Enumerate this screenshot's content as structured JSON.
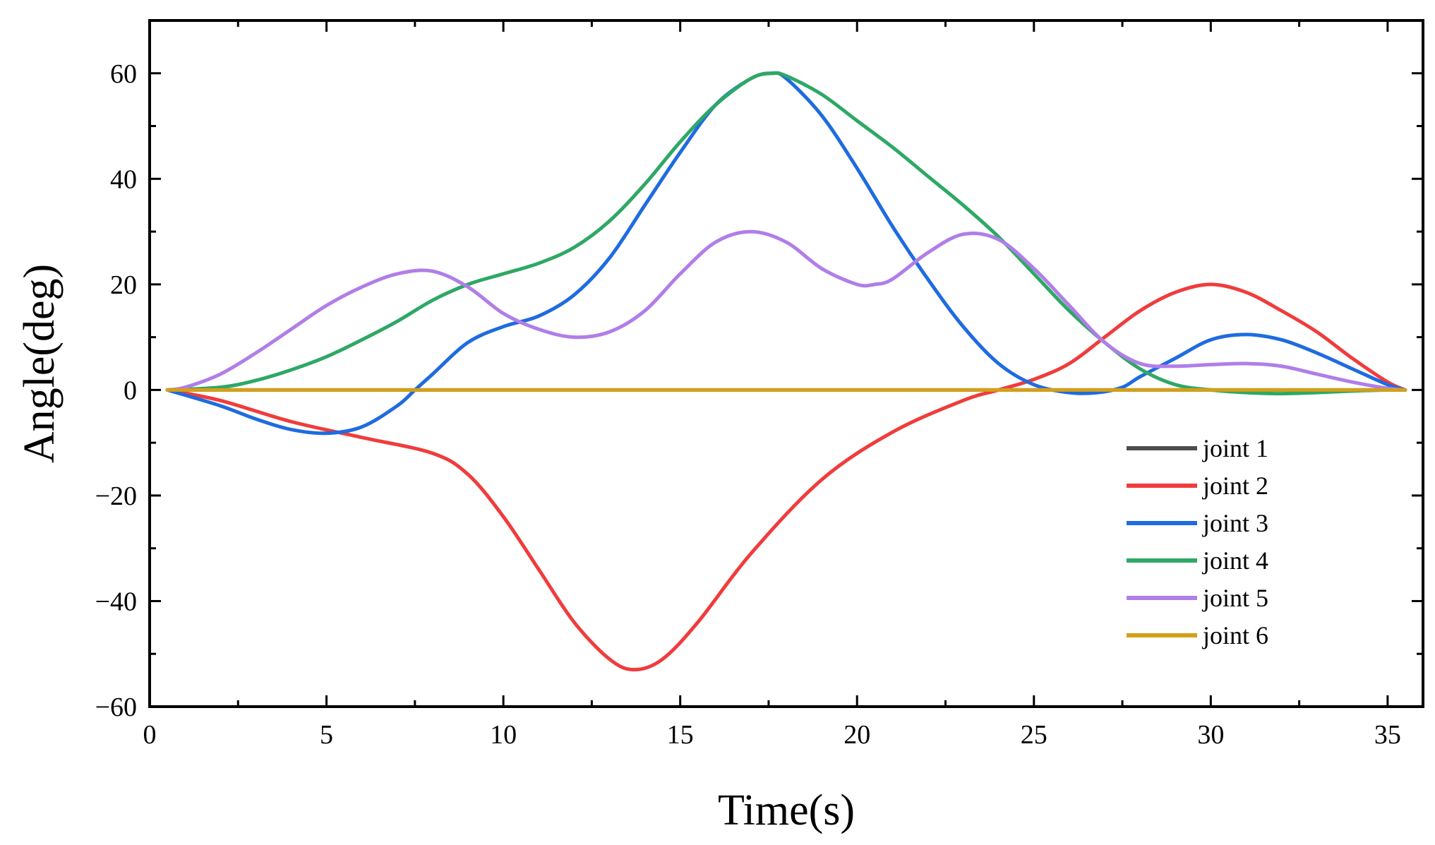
{
  "chart_data": {
    "type": "line",
    "title": "",
    "xlabel": "Time(s)",
    "ylabel": "Angle(deg)",
    "xlim": [
      0,
      36
    ],
    "ylim": [
      -60,
      70
    ],
    "xticks": [
      0,
      5,
      10,
      15,
      20,
      25,
      30,
      35
    ],
    "xtick_labels": [
      "0",
      "5",
      "10",
      "15",
      "20",
      "25",
      "30",
      "35"
    ],
    "yticks": [
      -60,
      -40,
      -20,
      0,
      20,
      40,
      60
    ],
    "ytick_labels": [
      "−60",
      "−40",
      "−20",
      "0",
      "20",
      "40",
      "60"
    ],
    "grid": false,
    "legend_position": "lower-right",
    "series": [
      {
        "name": "joint 1",
        "color": "#4d4d4d",
        "x": [
          0.5,
          35.5
        ],
        "y": [
          0,
          0
        ]
      },
      {
        "name": "joint 2",
        "color": "#f03c3c",
        "x": [
          0.5,
          2,
          4,
          6,
          8,
          9,
          10,
          11,
          12,
          13,
          13.7,
          14.5,
          15.5,
          17,
          19,
          21,
          23,
          24,
          25,
          26,
          27,
          28,
          29,
          30,
          31,
          32,
          33,
          34,
          35,
          35.5
        ],
        "y": [
          0,
          -2,
          -6,
          -9,
          -12,
          -16,
          -24,
          -34,
          -44,
          -51,
          -53,
          -51,
          -44,
          -31,
          -17,
          -8,
          -2,
          0,
          2,
          5,
          10,
          15,
          18.5,
          20,
          18.5,
          15,
          11,
          6,
          1.5,
          0
        ]
      },
      {
        "name": "joint 3",
        "color": "#1f6be0",
        "x": [
          0.5,
          2,
          3,
          4,
          5,
          6,
          7,
          7.5,
          8,
          9,
          10,
          11,
          12,
          13,
          14,
          15,
          16,
          17,
          17.6,
          18,
          19,
          20,
          21,
          22,
          23,
          24,
          25,
          26,
          26.8,
          27.5,
          28,
          29,
          30,
          31,
          32,
          33,
          34,
          35,
          35.5
        ],
        "y": [
          0,
          -3,
          -5.5,
          -7.5,
          -8.2,
          -7,
          -3,
          0,
          3,
          9,
          12,
          14,
          18,
          25,
          35,
          45,
          54,
          59,
          60,
          59,
          52,
          42,
          31,
          21,
          12,
          5,
          1,
          -0.5,
          -0.5,
          0.5,
          2.5,
          6,
          9.5,
          10.5,
          9.5,
          7,
          4,
          1,
          0
        ]
      },
      {
        "name": "joint 4",
        "color": "#2ea865",
        "x": [
          0.5,
          2,
          3,
          4,
          5,
          6,
          7,
          8,
          9,
          10,
          11,
          12,
          13,
          14,
          15,
          16,
          17,
          17.6,
          18,
          19,
          20,
          21,
          22,
          23,
          24,
          25,
          26,
          27,
          28,
          29,
          30,
          31,
          32,
          33,
          34,
          35,
          35.5
        ],
        "y": [
          0,
          0.5,
          1.8,
          3.8,
          6.3,
          9.5,
          13,
          17,
          20,
          22,
          24,
          27,
          32,
          39,
          47,
          54,
          59,
          60,
          59.5,
          56,
          51,
          46,
          40.5,
          35,
          29,
          22,
          15,
          9,
          4,
          1,
          0,
          -0.5,
          -0.7,
          -0.5,
          -0.2,
          0,
          0
        ]
      },
      {
        "name": "joint 5",
        "color": "#b07ee8",
        "x": [
          0.5,
          1,
          2,
          3,
          4,
          5,
          6,
          7,
          8,
          9,
          10,
          11,
          12,
          13,
          14,
          15,
          16,
          17,
          18,
          19,
          20,
          20.5,
          21,
          22,
          23,
          24,
          25,
          26,
          27,
          28,
          29,
          30,
          31,
          32,
          33,
          34,
          35,
          35.5
        ],
        "y": [
          0,
          0.5,
          3,
          7,
          11.5,
          16,
          19.5,
          22,
          22.5,
          19.5,
          14.5,
          11.5,
          10,
          11,
          15,
          22,
          28,
          30,
          28,
          23,
          20,
          20,
          21,
          26,
          29.5,
          28.5,
          23,
          16,
          9,
          5,
          4.5,
          4.8,
          5,
          4.5,
          3,
          1.5,
          0.3,
          0
        ]
      },
      {
        "name": "joint 6",
        "color": "#d4a017",
        "x": [
          0.5,
          35.5
        ],
        "y": [
          0,
          0
        ]
      }
    ]
  }
}
